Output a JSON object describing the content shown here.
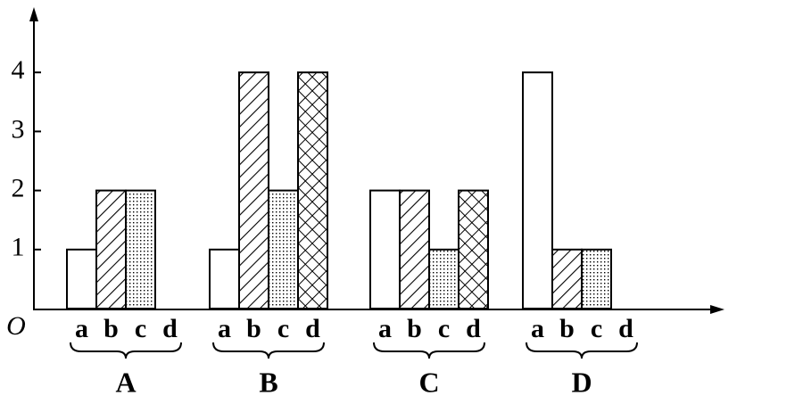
{
  "chart_data": {
    "type": "grouped-bar",
    "categories": [
      "A",
      "B",
      "C",
      "D"
    ],
    "series": [
      {
        "name": "a",
        "pattern": "none",
        "color": "#000000",
        "values": [
          1,
          1,
          2,
          4
        ]
      },
      {
        "name": "b",
        "pattern": "hatch",
        "color": "#000000",
        "values": [
          2,
          4,
          2,
          1
        ]
      },
      {
        "name": "c",
        "pattern": "dots",
        "color": "#000000",
        "values": [
          2,
          2,
          1,
          1
        ]
      },
      {
        "name": "d",
        "pattern": "crosshatch",
        "color": "#000000",
        "values": [
          null,
          4,
          2,
          null
        ]
      }
    ],
    "origin_label": "O",
    "ylim": [
      0,
      5
    ],
    "yticks": [
      1,
      2,
      3,
      4
    ]
  }
}
